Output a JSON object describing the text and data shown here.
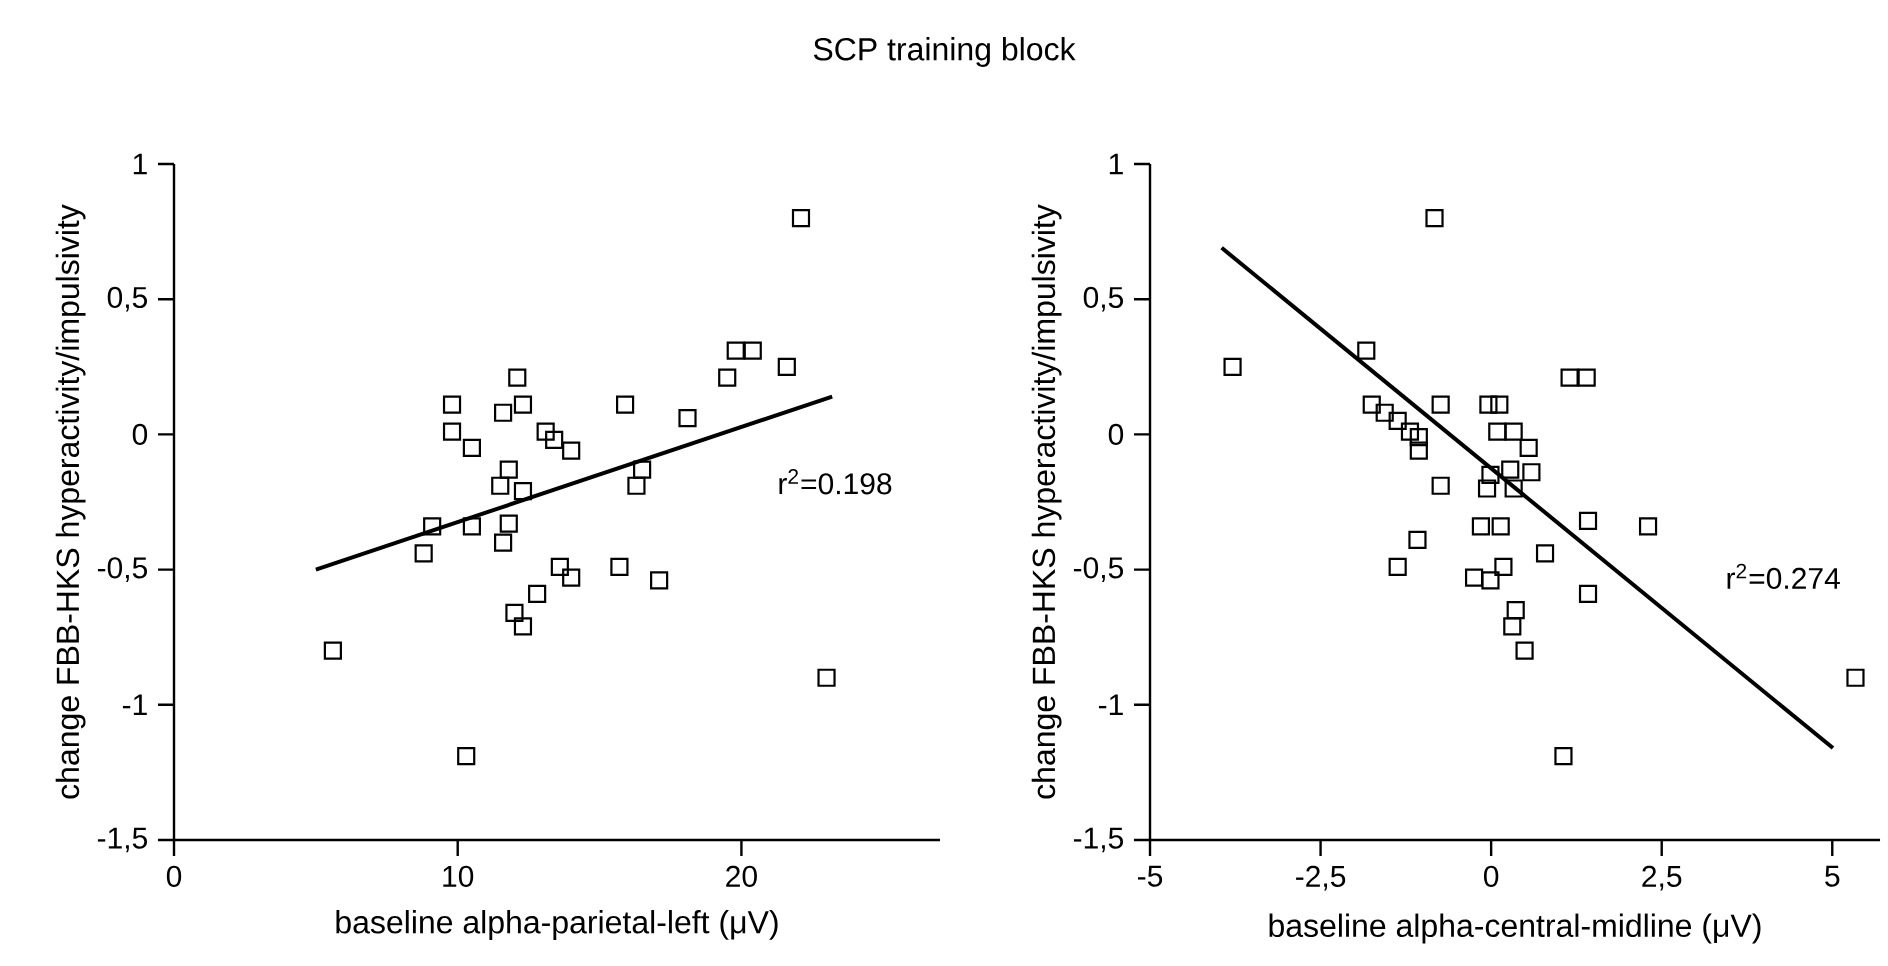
{
  "chart_data": [
    {
      "type": "scatter",
      "title": "SCP training block",
      "xlabel": "baseline alpha-parietal-left (μV)",
      "ylabel": "change FBB-HKS hyperactivity/impulsivity",
      "xlim": [
        0,
        27
      ],
      "xticks": [
        0,
        10,
        20
      ],
      "ylim": [
        -1.5,
        1
      ],
      "yticks": [
        {
          "value": -1.5,
          "label": "-1,5"
        },
        -1,
        {
          "value": -0.5,
          "label": "-0,5"
        },
        0,
        {
          "value": 0.5,
          "label": "0,5"
        },
        1
      ],
      "annotations": [
        "r$^{2}$=0.198"
      ],
      "series": [
        {
          "marker": "square",
          "color": "#000000",
          "x": [
            5.6,
            9.8,
            9.8,
            10.5,
            8.8,
            9.1,
            10.5,
            10.3,
            12.1,
            12.3,
            11.6,
            13.1,
            13.4,
            14.0,
            11.8,
            11.5,
            12.3,
            11.8,
            11.6,
            13.6,
            14.0,
            12.8,
            12.0,
            12.3,
            15.7,
            15.9,
            16.5,
            16.3,
            17.1,
            18.1,
            19.5,
            19.8,
            20.4,
            21.6,
            22.1,
            23.0
          ],
          "values": [
            -0.8,
            0.11,
            0.01,
            -0.05,
            -0.44,
            -0.34,
            -0.34,
            -1.19,
            0.21,
            0.11,
            0.08,
            0.01,
            -0.02,
            -0.06,
            -0.13,
            -0.19,
            -0.21,
            -0.33,
            -0.4,
            -0.49,
            -0.53,
            -0.59,
            -0.66,
            -0.71,
            -0.49,
            0.11,
            -0.13,
            -0.19,
            -0.54,
            0.06,
            0.21,
            0.31,
            0.31,
            0.25,
            0.8,
            -0.9
          ]
        },
        {
          "type": "line",
          "marker": "none",
          "color": "#000000",
          "x": [
            5.0,
            23.2
          ],
          "values": [
            -0.5,
            0.14
          ]
        }
      ]
    },
    {
      "type": "scatter",
      "xlabel": "baseline alpha-central-midline (μV)",
      "ylabel": "change FBB-HKS hyperactivity/impulsivity",
      "xlim": [
        -5,
        5.7
      ],
      "xticks": [
        -5,
        {
          "value": -2.5,
          "label": "-2,5"
        },
        0,
        {
          "value": 2.5,
          "label": "2,5"
        },
        5
      ],
      "ylim": [
        -1.5,
        1
      ],
      "yticks": [
        {
          "value": -1.5,
          "label": "-1,5"
        },
        -1,
        {
          "value": -0.5,
          "label": "-0,5"
        },
        0,
        {
          "value": 0.5,
          "label": "0,5"
        },
        1
      ],
      "annotations": [
        "r$^{2}$=0.274"
      ],
      "series": [
        {
          "marker": "square",
          "color": "#000000",
          "x": [
            -3.79,
            -0.83,
            -1.83,
            -1.75,
            -1.56,
            -1.37,
            -1.19,
            -1.06,
            -1.06,
            -0.74,
            -0.74,
            -1.08,
            -1.37,
            -0.04,
            0.12,
            0.09,
            -0.01,
            -0.06,
            -0.15,
            0.14,
            -0.25,
            -0.01,
            0.18,
            0.33,
            0.55,
            0.28,
            0.59,
            0.33,
            0.36,
            0.31,
            0.49,
            0.79,
            1.15,
            1.4,
            1.42,
            1.42,
            2.3,
            1.06,
            5.34
          ],
          "values": [
            0.25,
            0.8,
            0.31,
            0.11,
            0.08,
            0.05,
            0.01,
            -0.01,
            -0.06,
            0.11,
            -0.19,
            -0.39,
            -0.49,
            0.11,
            0.11,
            0.01,
            -0.15,
            -0.2,
            -0.34,
            -0.34,
            -0.53,
            -0.54,
            -0.49,
            0.01,
            -0.05,
            -0.13,
            -0.14,
            -0.2,
            -0.65,
            -0.71,
            -0.8,
            -0.44,
            0.21,
            0.21,
            -0.32,
            -0.59,
            -0.34,
            -1.19,
            -0.9
          ]
        },
        {
          "type": "line",
          "marker": "none",
          "color": "#000000",
          "x": [
            -3.95,
            5.01
          ],
          "values": [
            0.69,
            -1.16
          ]
        }
      ]
    }
  ]
}
